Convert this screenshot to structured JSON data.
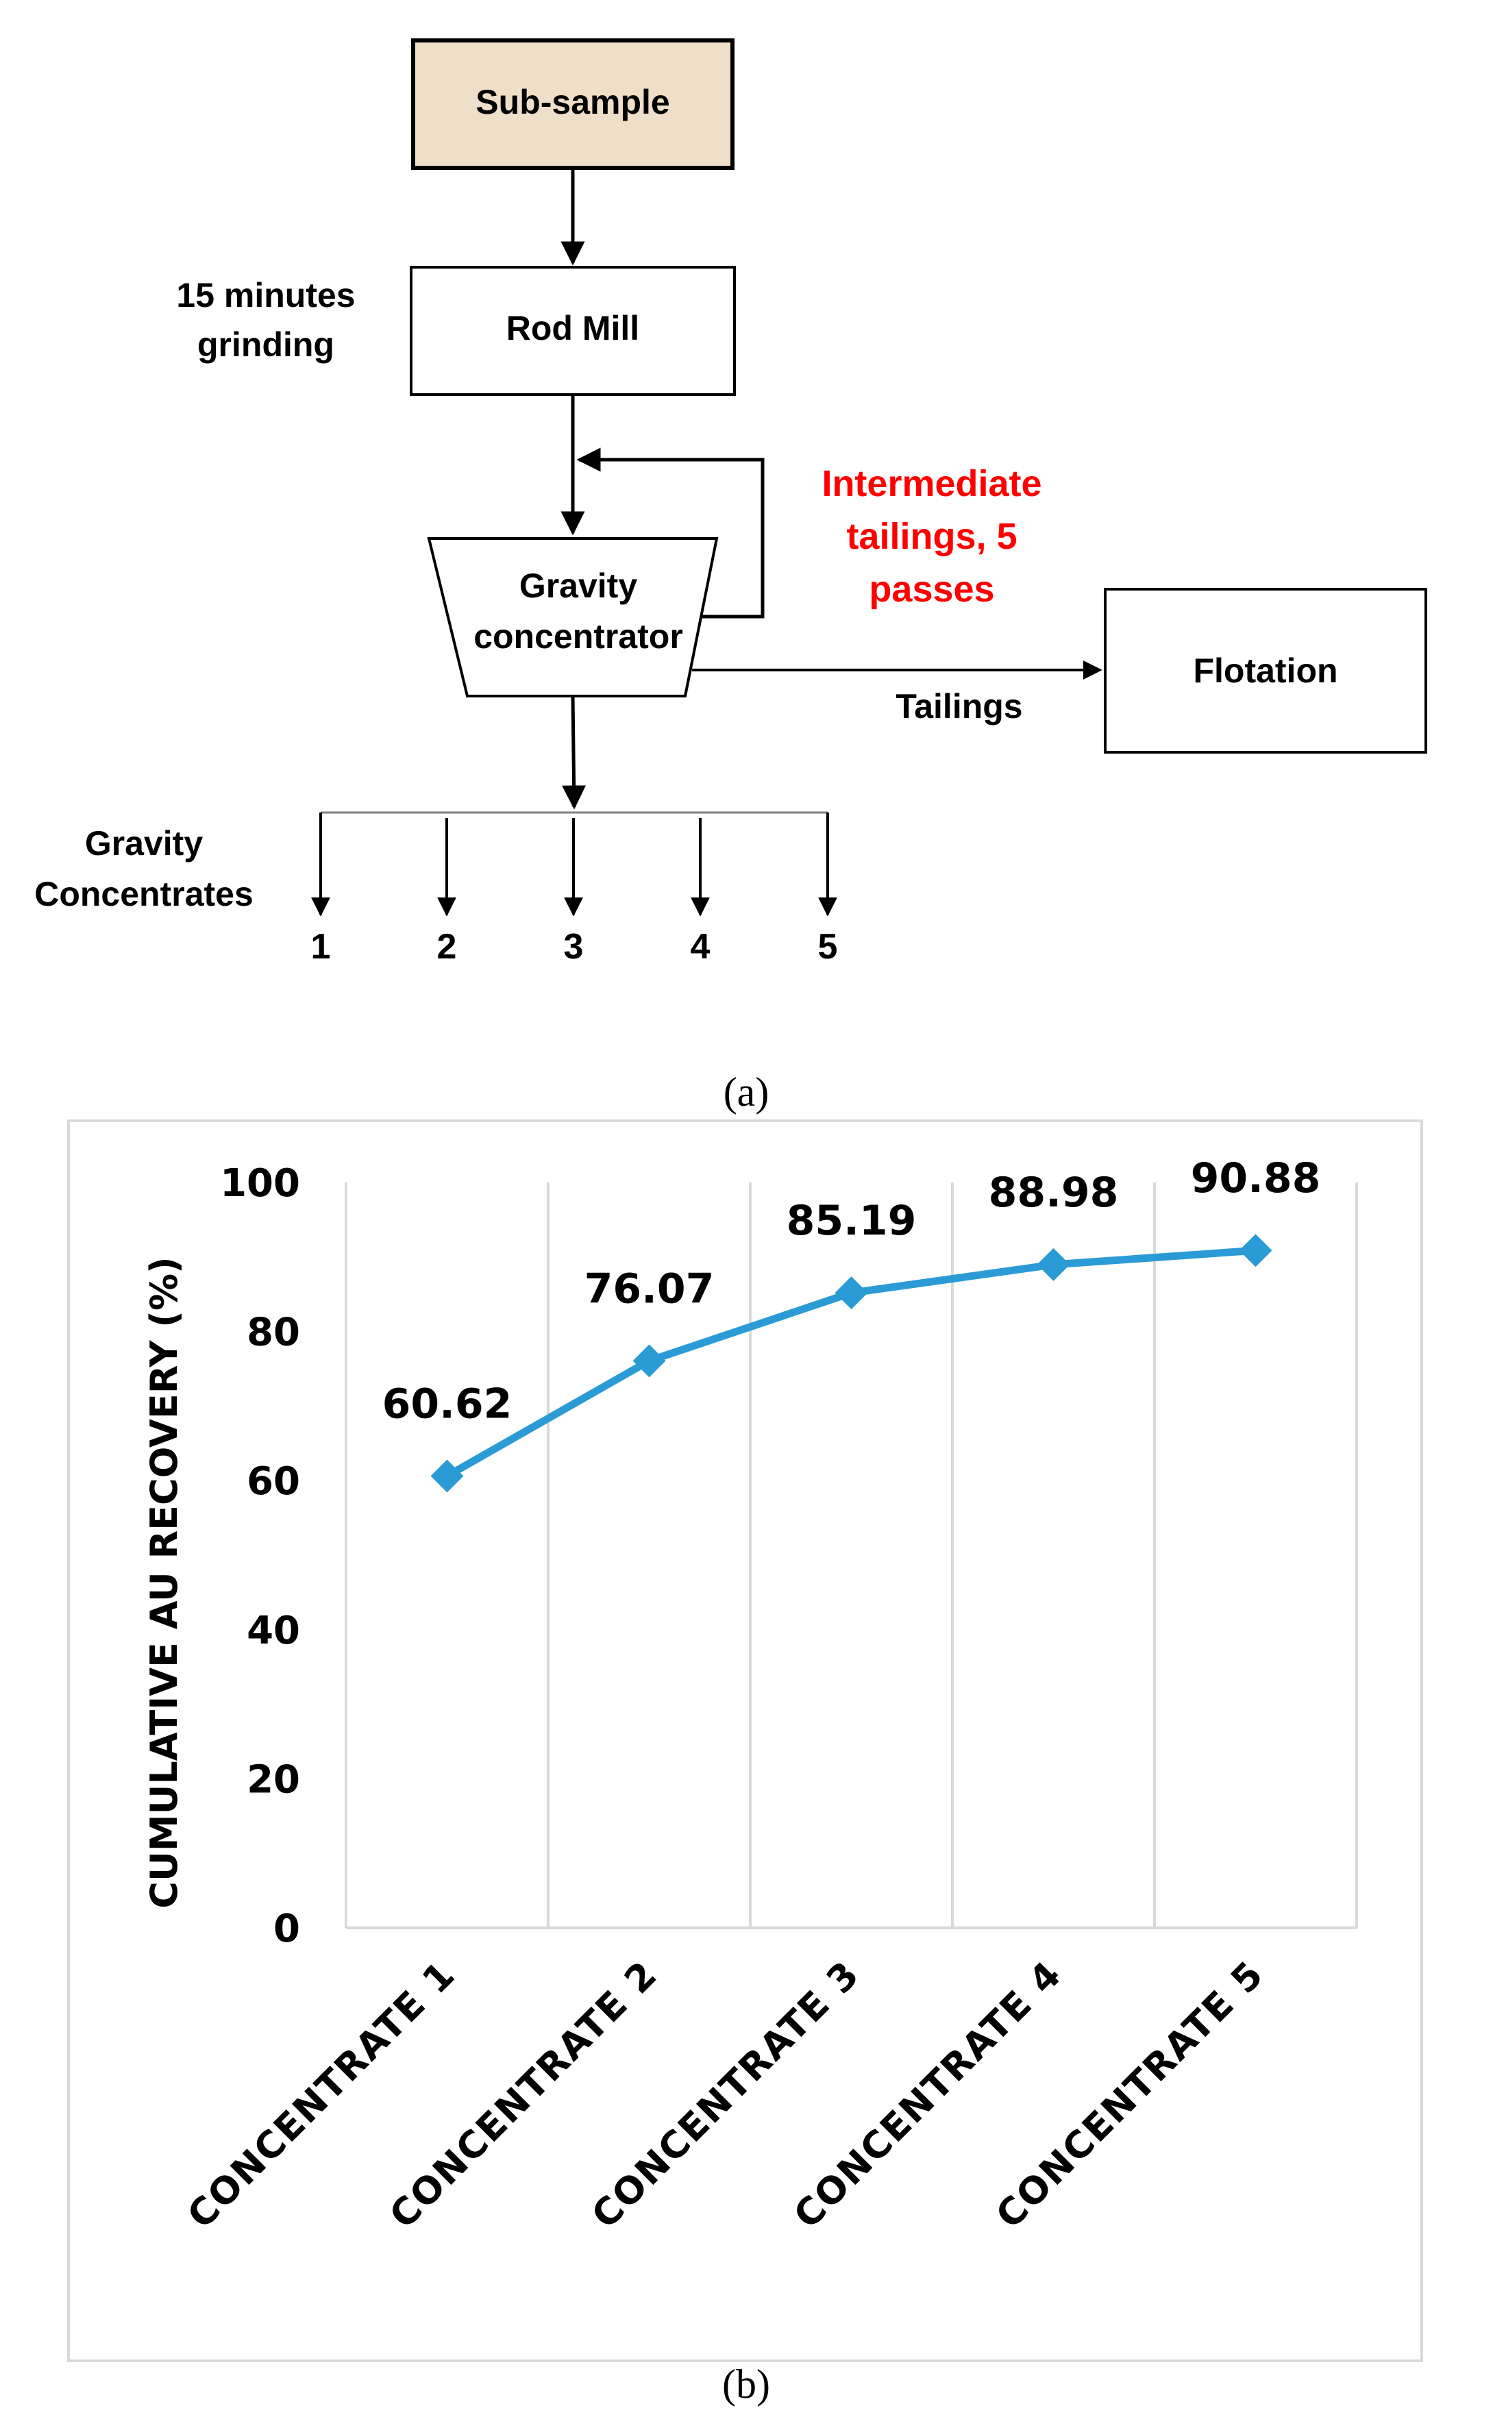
{
  "flowchart": {
    "sub_sample": "Sub-sample",
    "rod_mill": "Rod Mill",
    "grinding_line1": "15 minutes",
    "grinding_line2": "grinding",
    "gravity_line1": "Gravity",
    "gravity_line2": "concentrator",
    "intermediate_line1": "Intermediate",
    "intermediate_line2": "tailings, 5",
    "intermediate_line3": "passes",
    "tailings": "Tailings",
    "flotation": "Flotation",
    "concentrates_line1": "Gravity",
    "concentrates_line2": "Concentrates",
    "outputs": [
      "1",
      "2",
      "3",
      "4",
      "5"
    ],
    "caption": "(a)",
    "colors": {
      "sub_sample_fill": "#efdfc8",
      "red_text": "#ff0000"
    }
  },
  "chart_data": {
    "type": "line",
    "categories": [
      "CONCENTRATE 1",
      "CONCENTRATE 2",
      "CONCENTRATE 3",
      "CONCENTRATE 4",
      "CONCENTRATE 5"
    ],
    "values": [
      60.62,
      76.07,
      85.19,
      88.98,
      90.88
    ],
    "data_labels": [
      "60.62",
      "76.07",
      "85.19",
      "88.98",
      "90.88"
    ],
    "ylabel": "CUMULATIVE AU RECOVERY (%)",
    "xlabel": "",
    "ylim": [
      0,
      100
    ],
    "yticks": [
      "0",
      "20",
      "40",
      "60",
      "80",
      "100"
    ],
    "grid": "vertical",
    "marker": "diamond",
    "line_color": "#2b9bd6",
    "caption": "(b)"
  }
}
